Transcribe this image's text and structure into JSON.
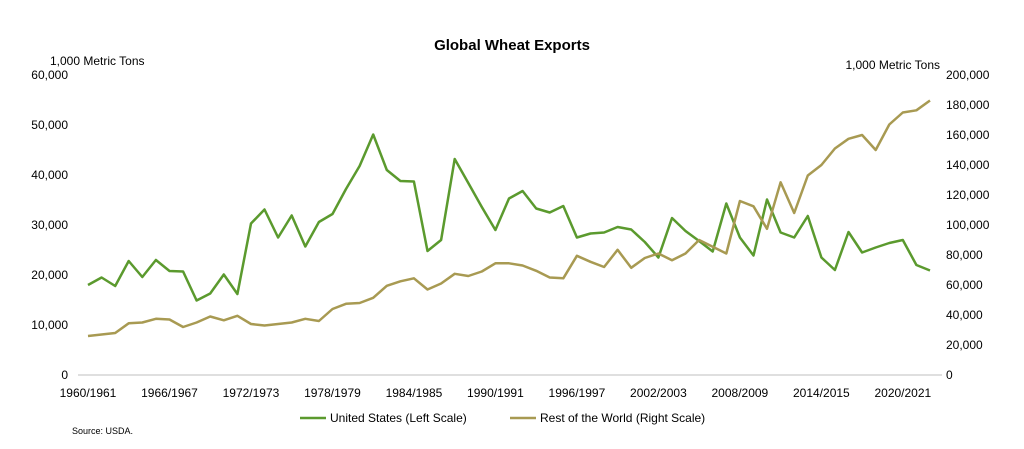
{
  "chart_data": {
    "type": "line",
    "title": "Global Wheat Exports",
    "left_unit": "1,000 Metric Tons",
    "right_unit": "1,000 Metric Tons",
    "left_ylim": [
      0,
      60000
    ],
    "right_ylim": [
      0,
      200000
    ],
    "left_ticks": [
      "0",
      "10,000",
      "20,000",
      "30,000",
      "40,000",
      "50,000",
      "60,000"
    ],
    "right_ticks": [
      "0",
      "20,000",
      "40,000",
      "60,000",
      "80,000",
      "100,000",
      "120,000",
      "140,000",
      "160,000",
      "180,000",
      "200,000"
    ],
    "x_tick_labels": [
      "1960/1961",
      "1966/1967",
      "1972/1973",
      "1978/1979",
      "1984/1985",
      "1990/1991",
      "1996/1997",
      "2002/2003",
      "2008/2009",
      "2014/2015",
      "2020/2021"
    ],
    "x_tick_index": [
      0,
      6,
      12,
      18,
      24,
      30,
      36,
      42,
      48,
      54,
      60
    ],
    "grid": false,
    "legend_position": "bottom",
    "source": "Source: USDA.",
    "series": [
      {
        "name": "United States (Left Scale)",
        "axis": "left",
        "color": "#5b9a2e",
        "values": [
          18000,
          19500,
          17800,
          22800,
          19600,
          23000,
          20800,
          20700,
          14900,
          16300,
          20100,
          16200,
          30300,
          33100,
          27500,
          31900,
          25700,
          30600,
          32200,
          37200,
          41800,
          48100,
          41000,
          38800,
          38700,
          24800,
          27000,
          43200,
          38400,
          33600,
          29000,
          35300,
          36800,
          33300,
          32500,
          33800,
          27500,
          28300,
          28500,
          29600,
          29100,
          26600,
          23500,
          31400,
          28800,
          26800,
          24700,
          34300,
          27500,
          23900,
          35100,
          28500,
          27500,
          31800,
          23500,
          21000,
          28600,
          24500,
          25500,
          26400,
          27000,
          22000,
          20900
        ]
      },
      {
        "name": "Rest of the World (Right Scale)",
        "axis": "right",
        "color": "#a89a52",
        "values": [
          26000,
          27000,
          28000,
          34500,
          35000,
          37500,
          37000,
          32000,
          35000,
          39000,
          36500,
          39500,
          34000,
          33000,
          34000,
          35000,
          37500,
          36000,
          44000,
          47500,
          48000,
          51500,
          59500,
          62500,
          64500,
          57000,
          61000,
          67500,
          66000,
          69000,
          74500,
          74500,
          73000,
          69500,
          65000,
          64500,
          79500,
          75500,
          72000,
          83500,
          71500,
          78000,
          81000,
          76500,
          81000,
          90000,
          85500,
          81000,
          116000,
          112500,
          97500,
          128500,
          108000,
          133000,
          140000,
          151000,
          157500,
          160000,
          150000,
          167000,
          175000,
          176500,
          183000
        ]
      }
    ]
  }
}
